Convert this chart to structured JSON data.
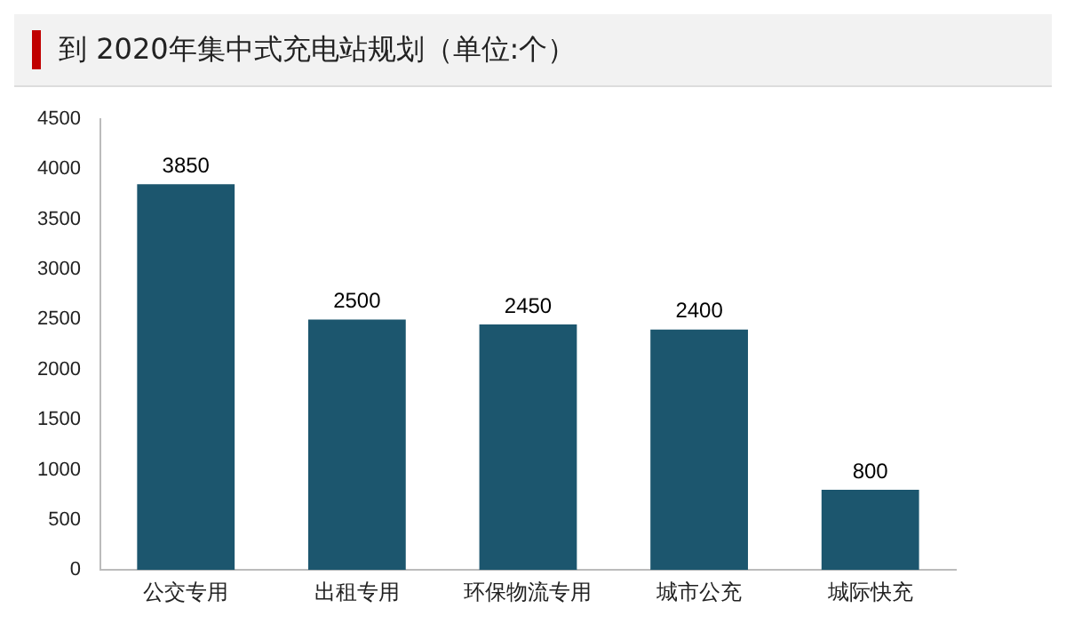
{
  "chart_data": {
    "type": "bar",
    "title": "到 2020年集中式充电站规划（单位:个）",
    "categories": [
      "公交专用",
      "出租专用",
      "环保物流专用",
      "城市公充",
      "城际快充"
    ],
    "values": [
      3850,
      2500,
      2450,
      2400,
      800
    ],
    "color": "#1c566e",
    "ylim": [
      0,
      4500
    ],
    "yticks": [
      0,
      500,
      1000,
      1500,
      2000,
      2500,
      3000,
      3500,
      4000,
      4500
    ],
    "data_labels": true
  }
}
